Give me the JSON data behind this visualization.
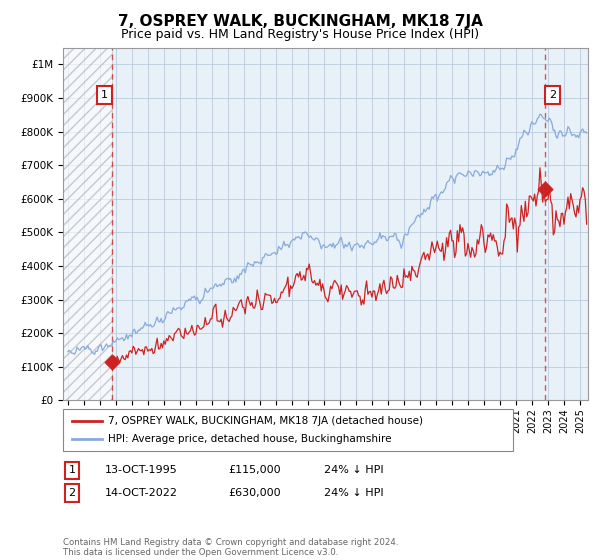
{
  "title": "7, OSPREY WALK, BUCKINGHAM, MK18 7JA",
  "subtitle": "Price paid vs. HM Land Registry's House Price Index (HPI)",
  "title_fontsize": 11,
  "subtitle_fontsize": 9,
  "ylim": [
    0,
    1050000
  ],
  "xlim_start": 1992.7,
  "xlim_end": 2025.5,
  "sale1_year": 1995.79,
  "sale1_price": 115000,
  "sale2_year": 2022.79,
  "sale2_price": 630000,
  "legend_label_red": "7, OSPREY WALK, BUCKINGHAM, MK18 7JA (detached house)",
  "legend_label_blue": "HPI: Average price, detached house, Buckinghamshire",
  "annotation1_date": "13-OCT-1995",
  "annotation1_price": "£115,000",
  "annotation1_hpi": "24% ↓ HPI",
  "annotation2_date": "14-OCT-2022",
  "annotation2_price": "£630,000",
  "annotation2_hpi": "24% ↓ HPI",
  "footer": "Contains HM Land Registry data © Crown copyright and database right 2024.\nThis data is licensed under the Open Government Licence v3.0.",
  "red_color": "#cc2222",
  "blue_color": "#88aadd",
  "grid_color": "#bbccdd",
  "bg_color": "#e8f0f8"
}
